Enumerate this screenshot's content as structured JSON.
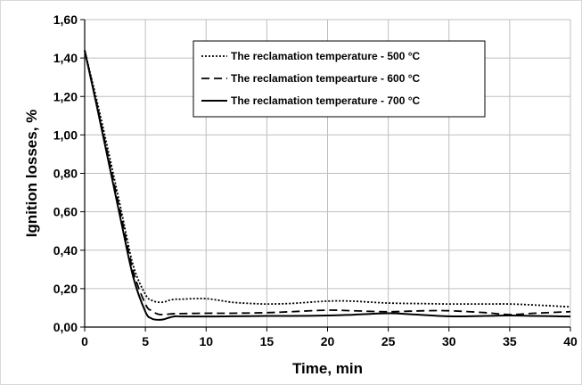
{
  "chart_data": {
    "type": "line",
    "xlabel": "Time, min",
    "ylabel": "Ignition losses, %",
    "xlim": [
      0,
      40
    ],
    "ylim": [
      0,
      1.6
    ],
    "x_ticks": [
      "0",
      "5",
      "10",
      "15",
      "20",
      "25",
      "30",
      "35",
      "40"
    ],
    "y_ticks": [
      "0,00",
      "0,20",
      "0,40",
      "0,60",
      "0,80",
      "1,00",
      "1,20",
      "1,40",
      "1,60"
    ],
    "grid": true,
    "legend_position": "top-right",
    "series": [
      {
        "name": "The reclamation temperature - 500 °C",
        "style": "dotted",
        "color": "#000000",
        "x": [
          0,
          1,
          2,
          3,
          4,
          5,
          5.5,
          6,
          6.5,
          7,
          7.5,
          8,
          9,
          10,
          11,
          12,
          13,
          14,
          15,
          17,
          20,
          22,
          25,
          28,
          30,
          33,
          35,
          37,
          40
        ],
        "y": [
          1.44,
          1.18,
          0.9,
          0.61,
          0.32,
          0.17,
          0.14,
          0.13,
          0.13,
          0.14,
          0.145,
          0.145,
          0.148,
          0.148,
          0.14,
          0.13,
          0.125,
          0.122,
          0.12,
          0.123,
          0.135,
          0.135,
          0.125,
          0.122,
          0.12,
          0.12,
          0.12,
          0.115,
          0.105
        ]
      },
      {
        "name": "The reclamation tempearture - 600 °C",
        "style": "dashed",
        "color": "#000000",
        "x": [
          0,
          1,
          2,
          3,
          4,
          5,
          5.5,
          6,
          6.5,
          7,
          7.5,
          8,
          10,
          12,
          15,
          17,
          20,
          22,
          25,
          28,
          30,
          33,
          35,
          37,
          40
        ],
        "y": [
          1.44,
          1.16,
          0.87,
          0.58,
          0.29,
          0.12,
          0.085,
          0.068,
          0.065,
          0.068,
          0.07,
          0.07,
          0.072,
          0.072,
          0.075,
          0.08,
          0.088,
          0.085,
          0.08,
          0.085,
          0.085,
          0.075,
          0.065,
          0.072,
          0.08
        ]
      },
      {
        "name": "The reclamation temperature - 700 °C",
        "style": "solid",
        "color": "#000000",
        "x": [
          0,
          1,
          2,
          3,
          4,
          5,
          5.5,
          6,
          6.5,
          7,
          7.5,
          8,
          10,
          12,
          15,
          17,
          20,
          22,
          25,
          27,
          30,
          33,
          35,
          37,
          40
        ],
        "y": [
          1.44,
          1.15,
          0.85,
          0.55,
          0.26,
          0.08,
          0.045,
          0.038,
          0.04,
          0.05,
          0.056,
          0.055,
          0.055,
          0.056,
          0.058,
          0.058,
          0.06,
          0.064,
          0.072,
          0.066,
          0.056,
          0.058,
          0.06,
          0.058,
          0.055
        ]
      }
    ]
  }
}
